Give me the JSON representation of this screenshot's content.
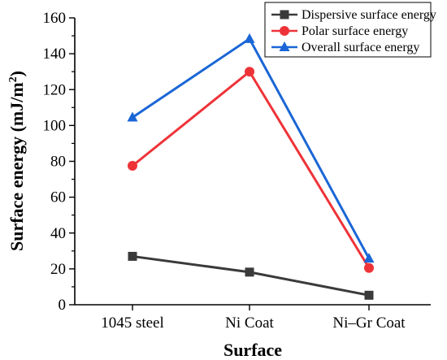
{
  "chart_data": {
    "type": "line",
    "title": "",
    "xlabel": "Surface",
    "ylabel": "Surface energy (mJ/m",
    "ylabel_superscript": "2",
    "ylabel_close": ")",
    "categories": [
      "1045 steel",
      "Ni Coat",
      "Ni–Gr Coat"
    ],
    "ylim": [
      0,
      160
    ],
    "yticks": [
      "0",
      "20",
      "40",
      "60",
      "80",
      "100",
      "120",
      "140",
      "160"
    ],
    "grid": false,
    "legend_position": "top-right",
    "series": [
      {
        "name": "Dispersive surface energy",
        "values": [
          27,
          18.2,
          5.3
        ],
        "color": "#3a3a3a",
        "marker": "square"
      },
      {
        "name": "Polar surface energy",
        "values": [
          77.5,
          130,
          20.5
        ],
        "color": "#ee3338",
        "marker": "circle"
      },
      {
        "name": "Overall surface energy",
        "values": [
          104.5,
          148.3,
          25.8
        ],
        "color": "#1a66d6",
        "marker": "triangle"
      }
    ]
  }
}
